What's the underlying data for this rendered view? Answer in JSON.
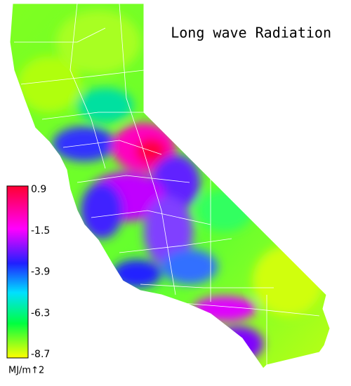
{
  "title": "Long wave Radiation",
  "legend": {
    "ticks": [
      0.9,
      -1.5,
      -3.9,
      -6.3,
      -8.7
    ],
    "unit": "MJ/m↑2"
  }
}
